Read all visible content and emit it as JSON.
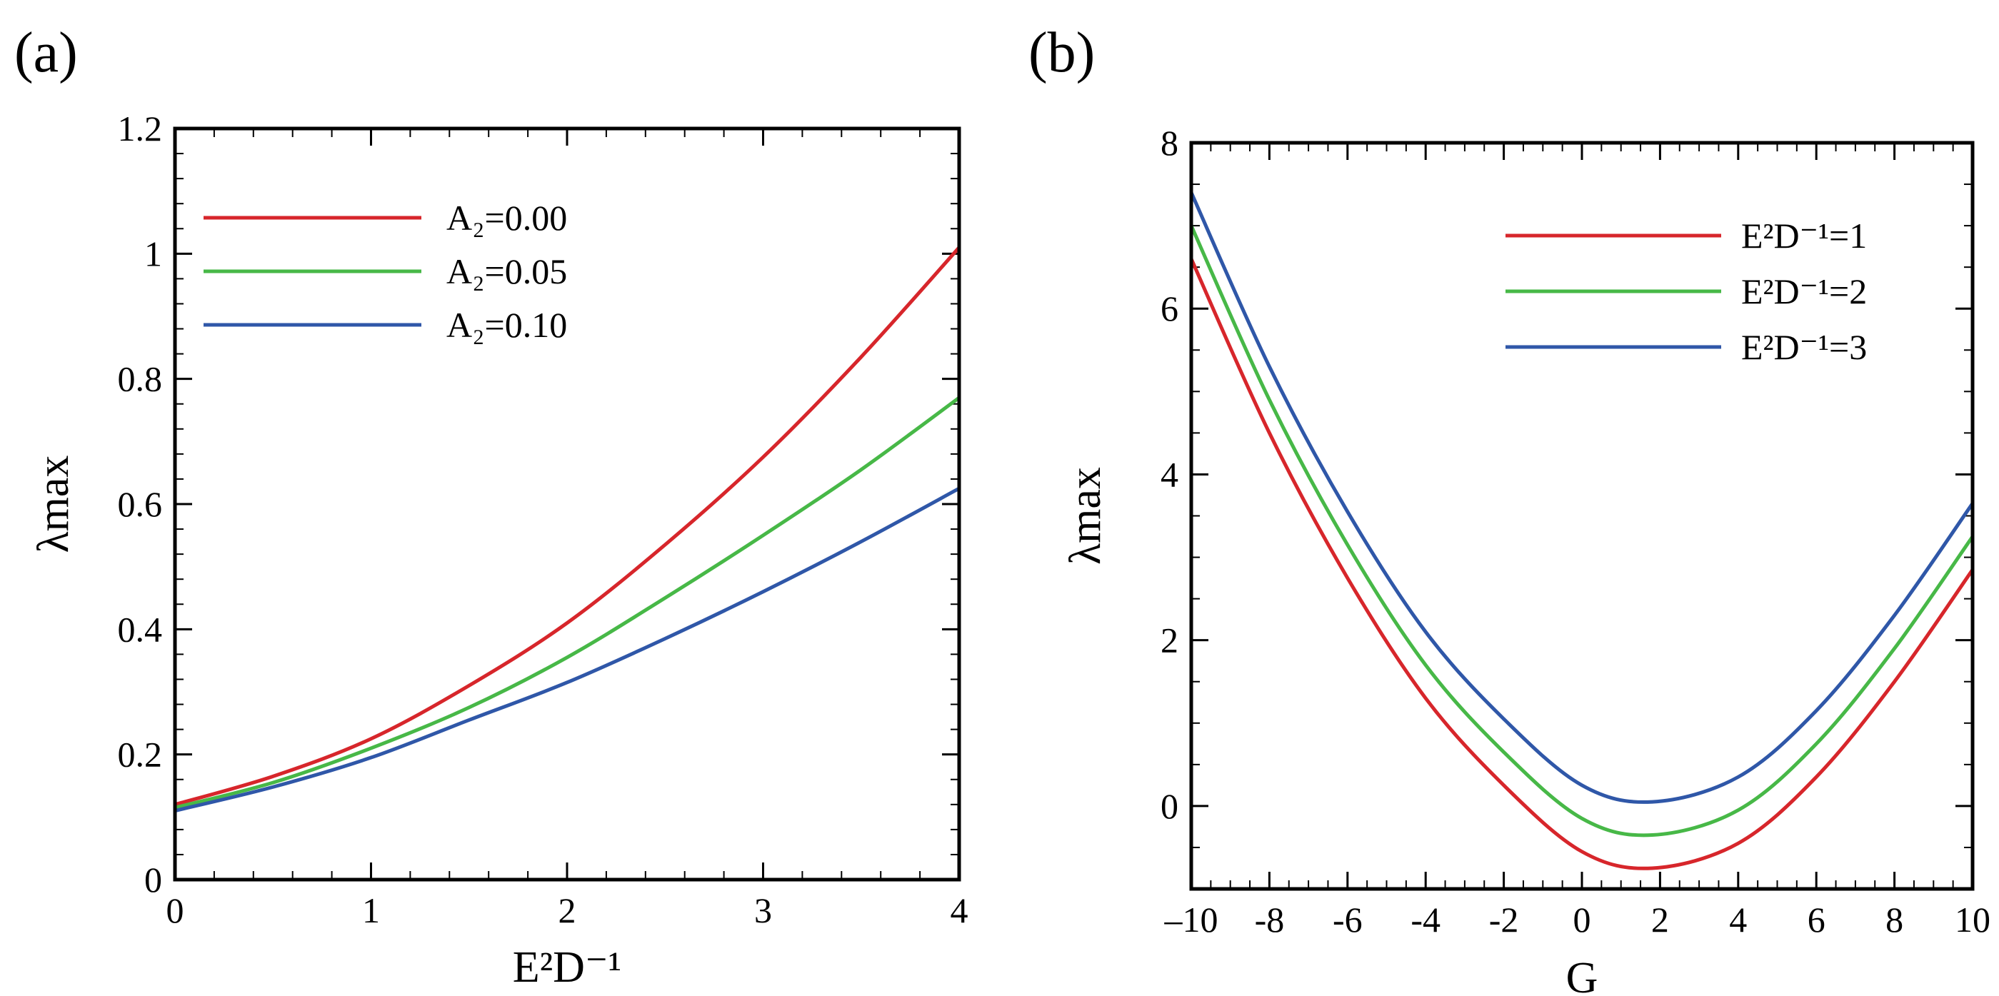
{
  "panels": {
    "a": {
      "label": "(a)"
    },
    "b": {
      "label": "(b)"
    }
  },
  "chart_data": [
    {
      "type": "line",
      "panel": "(a)",
      "xlabel": "E²D⁻¹",
      "ylabel": "λmax",
      "xlim": [
        0,
        4
      ],
      "ylim": [
        0,
        1.2
      ],
      "xticks": [
        0,
        1,
        2,
        3,
        4
      ],
      "xtick_labels": [
        "0",
        "1",
        "2",
        "3",
        "4"
      ],
      "yticks": [
        0,
        0.2,
        0.4,
        0.6,
        0.8,
        1.0,
        1.2
      ],
      "ytick_labels": [
        "0",
        "0.2",
        "0.4",
        "0.6",
        "0.8",
        "1",
        "1.2"
      ],
      "legend_position": "top-left",
      "series": [
        {
          "name": "A₂=0.00",
          "color": "#d7262b",
          "x": [
            0,
            0.5,
            1,
            1.5,
            2,
            2.5,
            3,
            3.5,
            4
          ],
          "y": [
            0.12,
            0.165,
            0.225,
            0.31,
            0.41,
            0.535,
            0.675,
            0.835,
            1.01
          ]
        },
        {
          "name": "A₂=0.05",
          "color": "#47b847",
          "x": [
            0,
            0.5,
            1,
            1.5,
            2,
            2.5,
            3,
            3.5,
            4
          ],
          "y": [
            0.115,
            0.155,
            0.21,
            0.275,
            0.355,
            0.45,
            0.55,
            0.655,
            0.77
          ]
        },
        {
          "name": "A₂=0.10",
          "color": "#2f57a8",
          "x": [
            0,
            0.5,
            1,
            1.5,
            2,
            2.5,
            3,
            3.5,
            4
          ],
          "y": [
            0.11,
            0.148,
            0.195,
            0.255,
            0.315,
            0.385,
            0.46,
            0.54,
            0.625
          ]
        }
      ]
    },
    {
      "type": "line",
      "panel": "(b)",
      "xlabel": "G",
      "ylabel": "λmax",
      "xlim": [
        -10,
        10
      ],
      "ylim": [
        -1,
        8
      ],
      "xticks": [
        -10,
        -8,
        -6,
        -4,
        -2,
        0,
        2,
        4,
        6,
        8,
        10
      ],
      "xtick_labels": [
        "–10",
        "-8",
        "-6",
        "-4",
        "-2",
        "0",
        "2",
        "4",
        "6",
        "8",
        "10"
      ],
      "yticks": [
        0,
        2,
        4,
        6,
        8
      ],
      "ytick_labels": [
        "0",
        "2",
        "4",
        "6",
        "8"
      ],
      "legend_position": "top-right",
      "series": [
        {
          "name": "E²D⁻¹=1",
          "color": "#d7262b",
          "x": [
            -10,
            -8,
            -6,
            -4,
            -2,
            0,
            1.8,
            4,
            6,
            8,
            10
          ],
          "y": [
            6.6,
            4.5,
            2.75,
            1.3,
            0.25,
            -0.55,
            -0.75,
            -0.45,
            0.35,
            1.5,
            2.85
          ]
        },
        {
          "name": "E²D⁻¹=2",
          "color": "#47b847",
          "x": [
            -10,
            -8,
            -6,
            -4,
            -2,
            0,
            1.8,
            4,
            6,
            8,
            10
          ],
          "y": [
            7.0,
            4.9,
            3.15,
            1.7,
            0.65,
            -0.15,
            -0.35,
            -0.05,
            0.75,
            1.9,
            3.25
          ]
        },
        {
          "name": "E²D⁻¹=3",
          "color": "#2f57a8",
          "x": [
            -10,
            -8,
            -6,
            -4,
            -2,
            0,
            1.8,
            4,
            6,
            8,
            10
          ],
          "y": [
            7.4,
            5.3,
            3.55,
            2.1,
            1.05,
            0.25,
            0.05,
            0.35,
            1.15,
            2.3,
            3.65
          ]
        }
      ]
    }
  ]
}
